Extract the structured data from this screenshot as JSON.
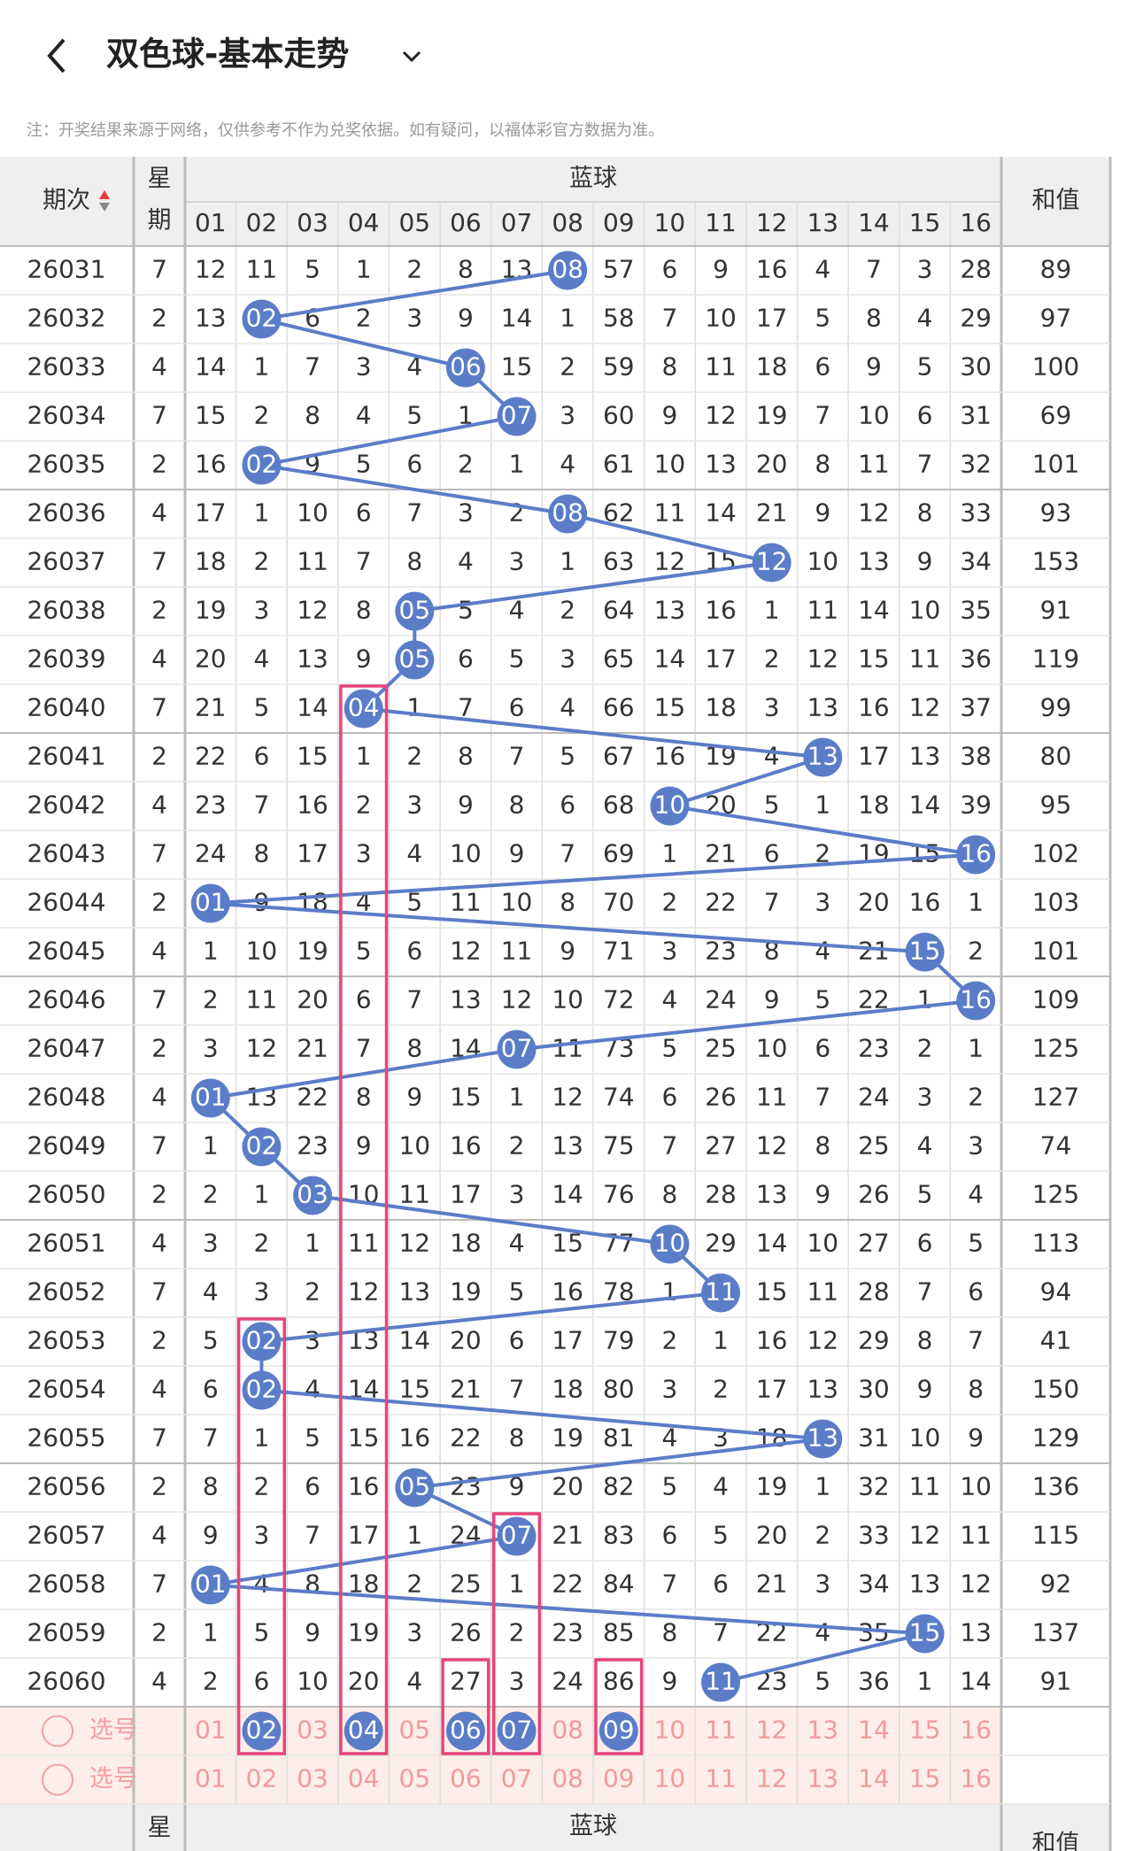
{
  "header": {
    "title": "双色球-基本走势",
    "note": "注：开奖结果来源于网络，仅供参考不作为兑奖依据。如有疑问，以福体彩官方数据为准。"
  },
  "table": {
    "period_header": "期次",
    "week_header": [
      "星",
      "期"
    ],
    "blue_header": "蓝球",
    "sum_header": "和值",
    "columns": [
      "01",
      "02",
      "03",
      "04",
      "05",
      "06",
      "07",
      "08",
      "09",
      "10",
      "11",
      "12",
      "13",
      "14",
      "15",
      "16"
    ],
    "rows": [
      {
        "period": "26031",
        "week": "7",
        "cells": [
          "12",
          "11",
          "5",
          "1",
          "2",
          "8",
          "13",
          {
            "ball": "08"
          },
          "57",
          "6",
          "9",
          "16",
          "4",
          "7",
          "3",
          "28"
        ],
        "sum": "89"
      },
      {
        "period": "26032",
        "week": "2",
        "cells": [
          "13",
          {
            "ball": "02"
          },
          "6",
          "2",
          "3",
          "9",
          "14",
          "1",
          "58",
          "7",
          "10",
          "17",
          "5",
          "8",
          "4",
          "29"
        ],
        "sum": "97"
      },
      {
        "period": "26033",
        "week": "4",
        "cells": [
          "14",
          "1",
          "7",
          "3",
          "4",
          {
            "ball": "06"
          },
          "15",
          "2",
          "59",
          "8",
          "11",
          "18",
          "6",
          "9",
          "5",
          "30"
        ],
        "sum": "100"
      },
      {
        "period": "26034",
        "week": "7",
        "cells": [
          "15",
          "2",
          "8",
          "4",
          "5",
          "1",
          {
            "ball": "07"
          },
          "3",
          "60",
          "9",
          "12",
          "19",
          "7",
          "10",
          "6",
          "31"
        ],
        "sum": "69"
      },
      {
        "period": "26035",
        "week": "2",
        "cells": [
          "16",
          {
            "ball": "02"
          },
          "9",
          "5",
          "6",
          "2",
          "1",
          "4",
          "61",
          "10",
          "13",
          "20",
          "8",
          "11",
          "7",
          "32"
        ],
        "sum": "101"
      },
      {
        "period": "26036",
        "week": "4",
        "cells": [
          "17",
          "1",
          "10",
          "6",
          "7",
          "3",
          "2",
          {
            "ball": "08"
          },
          "62",
          "11",
          "14",
          "21",
          "9",
          "12",
          "8",
          "33"
        ],
        "sum": "93"
      },
      {
        "period": "26037",
        "week": "7",
        "cells": [
          "18",
          "2",
          "11",
          "7",
          "8",
          "4",
          "3",
          "1",
          "63",
          "12",
          "15",
          {
            "ball": "12"
          },
          "10",
          "13",
          "9",
          "34"
        ],
        "sum": "153"
      },
      {
        "period": "26038",
        "week": "2",
        "cells": [
          "19",
          "3",
          "12",
          "8",
          {
            "ball": "05"
          },
          "5",
          "4",
          "2",
          "64",
          "13",
          "16",
          "1",
          "11",
          "14",
          "10",
          "35"
        ],
        "sum": "91"
      },
      {
        "period": "26039",
        "week": "4",
        "cells": [
          "20",
          "4",
          "13",
          "9",
          {
            "ball": "05"
          },
          "6",
          "5",
          "3",
          "65",
          "14",
          "17",
          "2",
          "12",
          "15",
          "11",
          "36"
        ],
        "sum": "119"
      },
      {
        "period": "26040",
        "week": "7",
        "cells": [
          "21",
          "5",
          "14",
          {
            "ball": "04"
          },
          "1",
          "7",
          "6",
          "4",
          "66",
          "15",
          "18",
          "3",
          "13",
          "16",
          "12",
          "37"
        ],
        "sum": "99"
      },
      {
        "period": "26041",
        "week": "2",
        "cells": [
          "22",
          "6",
          "15",
          "1",
          "2",
          "8",
          "7",
          "5",
          "67",
          "16",
          "19",
          "4",
          {
            "ball": "13"
          },
          "17",
          "13",
          "38"
        ],
        "sum": "80"
      },
      {
        "period": "26042",
        "week": "4",
        "cells": [
          "23",
          "7",
          "16",
          "2",
          "3",
          "9",
          "8",
          "6",
          "68",
          {
            "ball": "10"
          },
          "20",
          "5",
          "1",
          "18",
          "14",
          "39"
        ],
        "sum": "95"
      },
      {
        "period": "26043",
        "week": "7",
        "cells": [
          "24",
          "8",
          "17",
          "3",
          "4",
          "10",
          "9",
          "7",
          "69",
          "1",
          "21",
          "6",
          "2",
          "19",
          "15",
          {
            "ball": "16"
          }
        ],
        "sum": "102"
      },
      {
        "period": "26044",
        "week": "2",
        "cells": [
          {
            "ball": "01"
          },
          "9",
          "18",
          "4",
          "5",
          "11",
          "10",
          "8",
          "70",
          "2",
          "22",
          "7",
          "3",
          "20",
          "16",
          "1"
        ],
        "sum": "103"
      },
      {
        "period": "26045",
        "week": "4",
        "cells": [
          "1",
          "10",
          "19",
          "5",
          "6",
          "12",
          "11",
          "9",
          "71",
          "3",
          "23",
          "8",
          "4",
          "21",
          {
            "ball": "15"
          },
          "2"
        ],
        "sum": "101"
      },
      {
        "period": "26046",
        "week": "7",
        "cells": [
          "2",
          "11",
          "20",
          "6",
          "7",
          "13",
          "12",
          "10",
          "72",
          "4",
          "24",
          "9",
          "5",
          "22",
          "1",
          {
            "ball": "16"
          }
        ],
        "sum": "109"
      },
      {
        "period": "26047",
        "week": "2",
        "cells": [
          "3",
          "12",
          "21",
          "7",
          "8",
          "14",
          {
            "ball": "07"
          },
          "11",
          "73",
          "5",
          "25",
          "10",
          "6",
          "23",
          "2",
          "1"
        ],
        "sum": "125"
      },
      {
        "period": "26048",
        "week": "4",
        "cells": [
          {
            "ball": "01"
          },
          "13",
          "22",
          "8",
          "9",
          "15",
          "1",
          "12",
          "74",
          "6",
          "26",
          "11",
          "7",
          "24",
          "3",
          "2"
        ],
        "sum": "127"
      },
      {
        "period": "26049",
        "week": "7",
        "cells": [
          "1",
          {
            "ball": "02"
          },
          "23",
          "9",
          "10",
          "16",
          "2",
          "13",
          "75",
          "7",
          "27",
          "12",
          "8",
          "25",
          "4",
          "3"
        ],
        "sum": "74"
      },
      {
        "period": "26050",
        "week": "2",
        "cells": [
          "2",
          "1",
          {
            "ball": "03"
          },
          "10",
          "11",
          "17",
          "3",
          "14",
          "76",
          "8",
          "28",
          "13",
          "9",
          "26",
          "5",
          "4"
        ],
        "sum": "125"
      },
      {
        "period": "26051",
        "week": "4",
        "cells": [
          "3",
          "2",
          "1",
          "11",
          "12",
          "18",
          "4",
          "15",
          "77",
          {
            "ball": "10"
          },
          "29",
          "14",
          "10",
          "27",
          "6",
          "5"
        ],
        "sum": "113"
      },
      {
        "period": "26052",
        "week": "7",
        "cells": [
          "4",
          "3",
          "2",
          "12",
          "13",
          "19",
          "5",
          "16",
          "78",
          "1",
          {
            "ball": "11"
          },
          "15",
          "11",
          "28",
          "7",
          "6"
        ],
        "sum": "94"
      },
      {
        "period": "26053",
        "week": "2",
        "cells": [
          "5",
          {
            "ball": "02"
          },
          "3",
          "13",
          "14",
          "20",
          "6",
          "17",
          "79",
          "2",
          "1",
          "16",
          "12",
          "29",
          "8",
          "7"
        ],
        "sum": "41"
      },
      {
        "period": "26054",
        "week": "4",
        "cells": [
          "6",
          {
            "ball": "02"
          },
          "4",
          "14",
          "15",
          "21",
          "7",
          "18",
          "80",
          "3",
          "2",
          "17",
          "13",
          "30",
          "9",
          "8"
        ],
        "sum": "150"
      },
      {
        "period": "26055",
        "week": "7",
        "cells": [
          "7",
          "1",
          "5",
          "15",
          "16",
          "22",
          "8",
          "19",
          "81",
          "4",
          "3",
          "18",
          {
            "ball": "13"
          },
          "31",
          "10",
          "9"
        ],
        "sum": "129"
      },
      {
        "period": "26056",
        "week": "2",
        "cells": [
          "8",
          "2",
          "6",
          "16",
          {
            "ball": "05"
          },
          "23",
          "9",
          "20",
          "82",
          "5",
          "4",
          "19",
          "1",
          "32",
          "11",
          "10"
        ],
        "sum": "136"
      },
      {
        "period": "26057",
        "week": "4",
        "cells": [
          "9",
          "3",
          "7",
          "17",
          "1",
          "24",
          {
            "ball": "07"
          },
          "21",
          "83",
          "6",
          "5",
          "20",
          "2",
          "33",
          "12",
          "11"
        ],
        "sum": "115"
      },
      {
        "period": "26058",
        "week": "7",
        "cells": [
          {
            "ball": "01"
          },
          "4",
          "8",
          "18",
          "2",
          "25",
          "1",
          "22",
          "84",
          "7",
          "6",
          "21",
          "3",
          "34",
          "13",
          "12"
        ],
        "sum": "92"
      },
      {
        "period": "26059",
        "week": "2",
        "cells": [
          "1",
          "5",
          "9",
          "19",
          "3",
          "26",
          "2",
          "23",
          "85",
          "8",
          "7",
          "22",
          "4",
          "35",
          {
            "ball": "15"
          },
          "13"
        ],
        "sum": "137"
      },
      {
        "period": "26060",
        "week": "4",
        "cells": [
          "2",
          "6",
          "10",
          "20",
          "4",
          "27",
          "3",
          "24",
          "86",
          "9",
          {
            "ball": "11"
          },
          "23",
          "5",
          "36",
          "1",
          "14"
        ],
        "sum": "91"
      }
    ],
    "select_rows": [
      {
        "label": "选号",
        "nums": [
          "01",
          {
            "ball": "02"
          },
          "03",
          {
            "ball": "04"
          },
          "05",
          {
            "ball": "06"
          },
          {
            "ball": "07"
          },
          "08",
          {
            "ball": "09"
          },
          "10",
          "11",
          "12",
          "13",
          "14",
          "15",
          "16"
        ]
      },
      {
        "label": "选号",
        "nums": [
          "01",
          "02",
          "03",
          "04",
          "05",
          "06",
          "07",
          "08",
          "09",
          "10",
          "11",
          "12",
          "13",
          "14",
          "15",
          "16"
        ]
      }
    ]
  },
  "footer_header": {
    "week": "星",
    "blue": "蓝球",
    "sum": "和值"
  }
}
